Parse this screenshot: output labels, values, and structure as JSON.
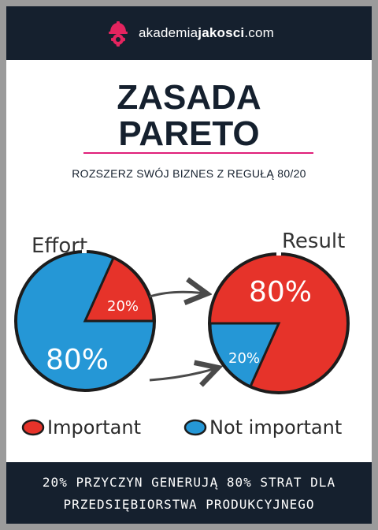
{
  "header": {
    "brand_prefix": "akademia",
    "brand_bold": "jakosci",
    "brand_suffix": ".com",
    "logo_color": "#e4245f"
  },
  "title": {
    "line1": "ZASADA",
    "line2": "PARETO"
  },
  "subtitle": "ROZSZERZ SWÓJ BIZNES Z REGUŁĄ 80/20",
  "diagram": {
    "effort_label": "Effort",
    "result_label": "Result",
    "effort_pie": {
      "slice_small": "20%",
      "slice_large": "80%",
      "small_fraction": 0.2
    },
    "result_pie": {
      "slice_small": "20%",
      "slice_large": "80%",
      "small_fraction": 0.2
    },
    "legend": [
      {
        "label": "Important",
        "color": "#e6332a"
      },
      {
        "label": "Not important",
        "color": "#2597d6"
      }
    ]
  },
  "footer": {
    "line1": "20% PRZYCZYN GENERUJĄ 80% STRAT DLA",
    "line2": "PRZEDSIĘBIORSTWA PRODUKCYJNEGO"
  },
  "colors": {
    "navy": "#15202e",
    "accent": "#e0207a",
    "red": "#e6332a",
    "blue": "#2597d6"
  }
}
